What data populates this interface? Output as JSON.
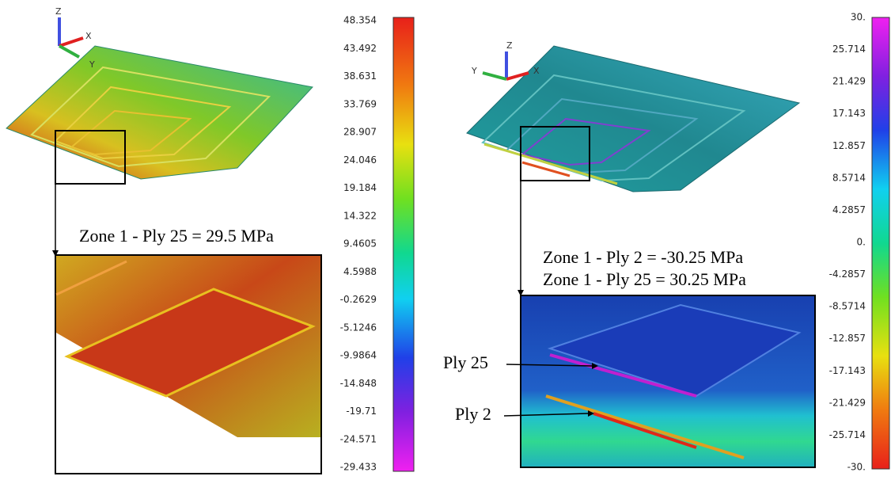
{
  "left_panel": {
    "axes": {
      "z": "Z",
      "x": "X",
      "y": "Y"
    },
    "annotation": "Zone 1 - Ply 25 = 29.5 MPa",
    "colorbar": {
      "ticks": [
        "48.354",
        "43.492",
        "38.631",
        "33.769",
        "28.907",
        "24.046",
        "19.184",
        "14.322",
        "9.4605",
        "4.5988",
        "-0.2629",
        "-5.1246",
        "-9.9864",
        "-14.848",
        "-19.71",
        "-24.571",
        "-29.433"
      ]
    }
  },
  "right_panel": {
    "axes": {
      "z": "Z",
      "y": "Y",
      "x": "X"
    },
    "annotations": [
      "Zone 1 - Ply 2 = -30.25 MPa",
      "Zone 1 - Ply 25 = 30.25 MPa"
    ],
    "callouts": [
      "Ply 25",
      "Ply 2"
    ],
    "colorbar": {
      "ticks": [
        "30.",
        "25.714",
        "21.429",
        "17.143",
        "12.857",
        "8.5714",
        "4.2857",
        "0.",
        "-4.2857",
        "-8.5714",
        "-12.857",
        "-17.143",
        "-21.429",
        "-25.714",
        "-30."
      ]
    }
  }
}
